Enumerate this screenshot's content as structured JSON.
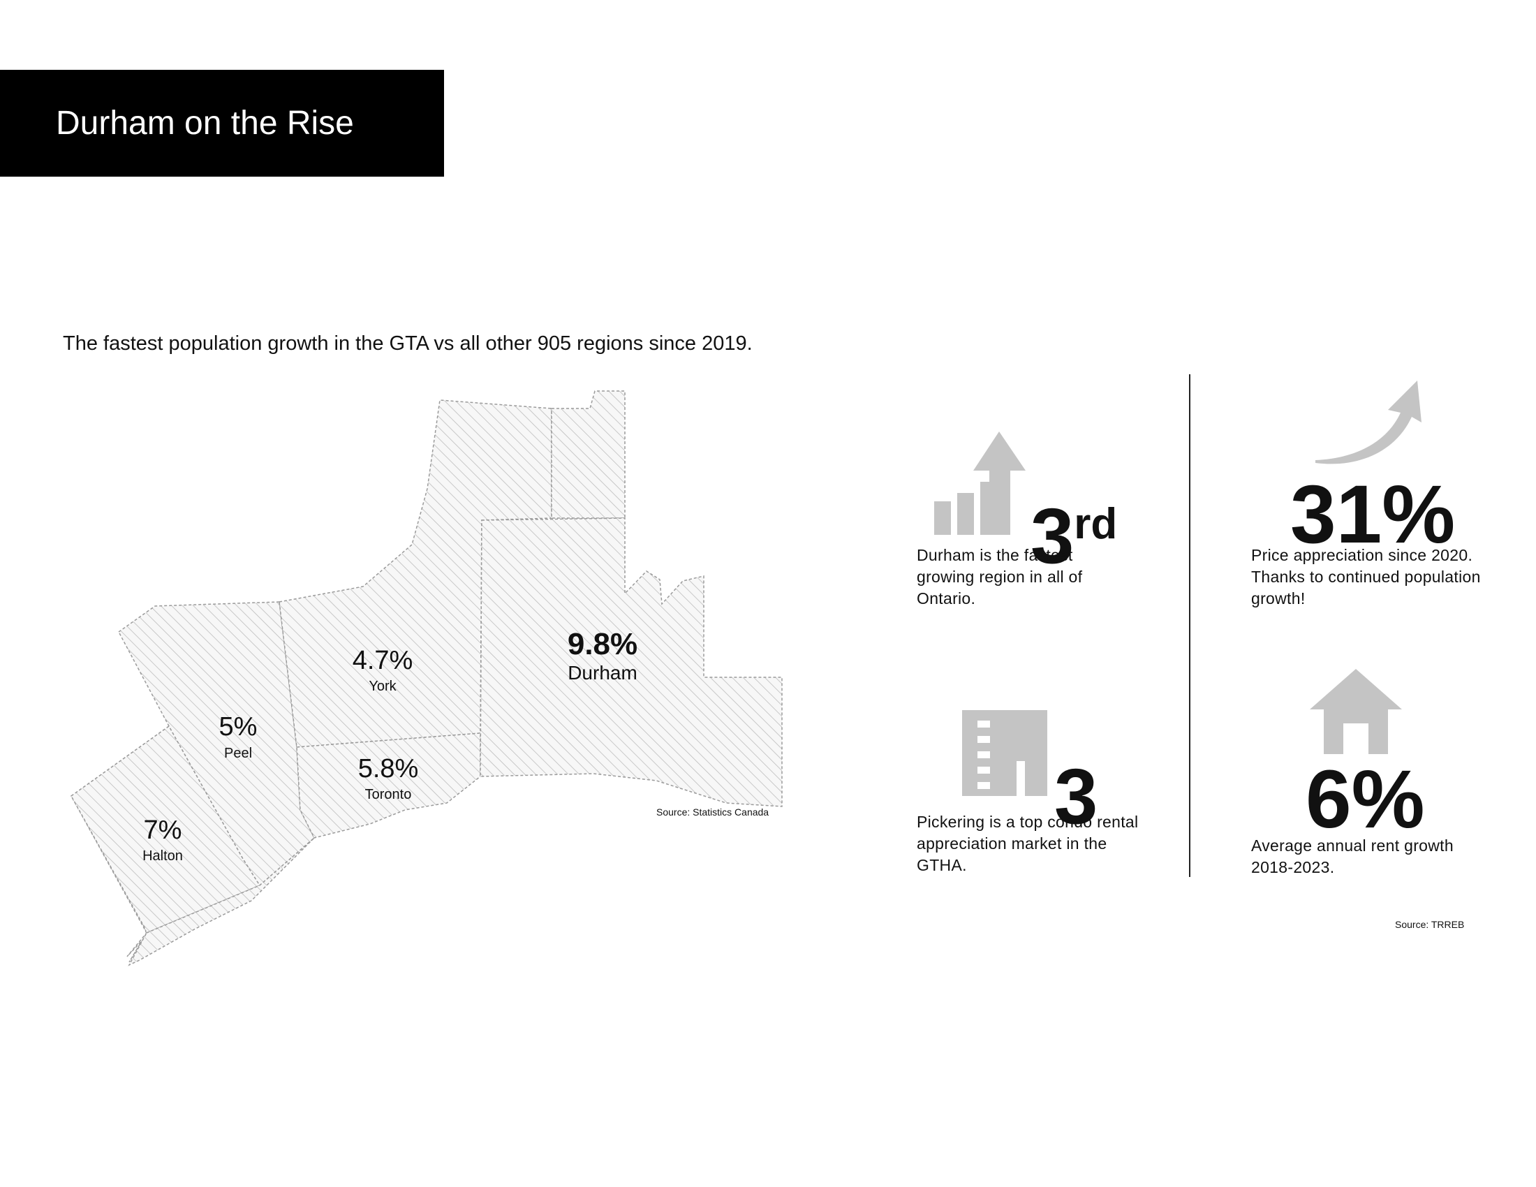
{
  "header": {
    "title": "Durham on the Rise"
  },
  "map": {
    "subtitle": "The fastest population growth in the GTA vs all other 905 regions since 2019.",
    "source": "Source: Statistics Canada",
    "regions": {
      "durham": {
        "pct": "9.8%",
        "name": "Durham"
      },
      "york": {
        "pct": "4.7%",
        "name": "York"
      },
      "peel": {
        "pct": "5%",
        "name": "Peel"
      },
      "toronto": {
        "pct": "5.8%",
        "name": "Toronto"
      },
      "halton": {
        "pct": "7%",
        "name": "Halton"
      }
    }
  },
  "stats": {
    "rank": {
      "value": "3",
      "suffix": "rd",
      "description": "Durham is the fastest growing region in all of Ontario.",
      "icon": "bar-growth-arrow-icon"
    },
    "price": {
      "value": "31%",
      "description": "Price appreciation since 2020. Thanks to continued population growth!",
      "icon": "trend-arrow-icon"
    },
    "pickering": {
      "value": "3",
      "description": "Pickering is a top condo rental appreciation market in the GTHA.",
      "icon": "condo-building-icon"
    },
    "rent": {
      "value": "6%",
      "description": "Average annual rent growth 2018-2023.",
      "icon": "house-icon"
    }
  },
  "source_right": "Source: TRREB",
  "colors": {
    "icon_gray": "#c4c4c4",
    "map_stroke": "#9a9a9a",
    "hatch": "#bcbcbc",
    "title_bg": "#000000"
  }
}
